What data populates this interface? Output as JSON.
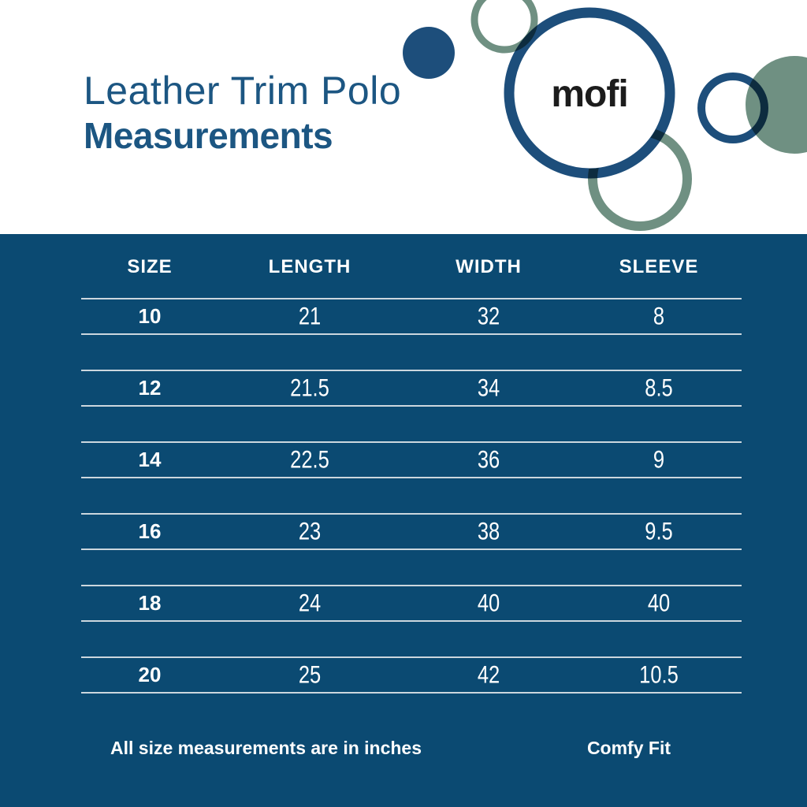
{
  "header": {
    "title_line1": "Leather Trim Polo",
    "title_line2": "Measurements",
    "brand_logo": "mofi"
  },
  "table": {
    "headers": [
      "SIZE",
      "LENGTH",
      "WIDTH",
      "SLEEVE"
    ],
    "rows": [
      [
        "10",
        "21",
        "32",
        "8"
      ],
      [
        "12",
        "21.5",
        "34",
        "8.5"
      ],
      [
        "14",
        "22.5",
        "36",
        "9"
      ],
      [
        "16",
        "23",
        "38",
        "9.5"
      ],
      [
        "18",
        "24",
        "40",
        "40"
      ],
      [
        "20",
        "25",
        "42",
        "10.5"
      ]
    ],
    "units_note": "All size measurements are in inches"
  },
  "footer": {
    "note": "All size measurements are in inches",
    "fit_label": "Comfy Fit"
  },
  "colors": {
    "panel_blue": "#0b4a72",
    "title_blue": "#1c5682",
    "circle_blue": "#1d4e7b",
    "sage_green": "#6f9082",
    "line_color": "#ccd7de",
    "logo_text_color": "#1c1c1c"
  }
}
